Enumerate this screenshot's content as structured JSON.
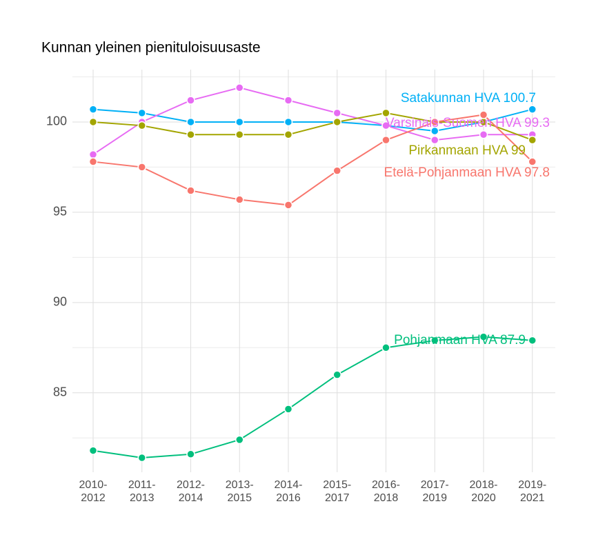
{
  "chart_data": {
    "type": "line",
    "title": "Kunnan yleinen pienituloisuusaste",
    "categories": [
      "2010-\n2012",
      "2011-\n2013",
      "2012-\n2014",
      "2013-\n2015",
      "2014-\n2016",
      "2015-\n2017",
      "2016-\n2018",
      "2017-\n2019",
      "2018-\n2020",
      "2019-\n2021"
    ],
    "series": [
      {
        "name": "Satakunnan HVA 100.7",
        "color": "#00B0F6",
        "values": [
          100.7,
          100.5,
          100,
          100,
          100,
          100,
          99.8,
          99.5,
          100,
          100.7
        ]
      },
      {
        "name": "Varsinais-Suomen HVA 99.3",
        "color": "#E76BF3",
        "values": [
          98.2,
          100,
          101.2,
          101.9,
          101.2,
          100.5,
          99.8,
          99.0,
          99.3,
          99.3
        ]
      },
      {
        "name": "Pirkanmaan HVA 99",
        "color": "#A3A500",
        "values": [
          100,
          99.8,
          99.3,
          99.3,
          99.3,
          100,
          100.5,
          100,
          100,
          99.0
        ]
      },
      {
        "name": "Etelä-Pohjanmaan HVA 97.8",
        "color": "#F8766D",
        "values": [
          97.8,
          97.5,
          96.2,
          95.7,
          95.4,
          97.3,
          99.0,
          100.0,
          100.4,
          97.8
        ]
      },
      {
        "name": "Pohjanmaan HVA 87.9",
        "color": "#00BF7D",
        "values": [
          81.8,
          81.4,
          81.6,
          82.4,
          84.1,
          86.0,
          87.5,
          87.9,
          88.1,
          87.9
        ]
      }
    ],
    "ylim": [
      80.6,
      102.9
    ],
    "yticks": [
      85,
      90,
      95,
      100
    ],
    "minor_yticks": [
      82.5,
      87.5,
      92.5,
      97.5,
      102.5
    ],
    "grid": true
  }
}
